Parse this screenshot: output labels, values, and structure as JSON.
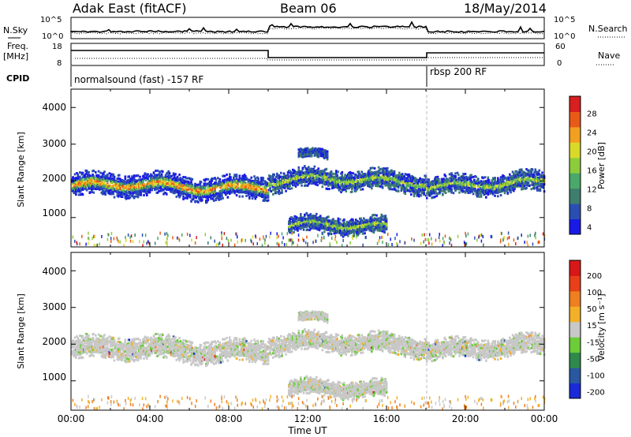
{
  "header": {
    "site": "Adak East (fitACF)",
    "beam": "Beam 06",
    "date": "18/May/2014"
  },
  "params": {
    "nsky_label": "N.Sky",
    "nsearch_label": "N.Search",
    "freq_label": "Freq.",
    "freq_unit": "[MHz]",
    "nave_label": "Nave",
    "cpid_label": "CPID",
    "noise_ticks": [
      "10^5",
      "10^0"
    ],
    "freq_ticks": [
      "18",
      "8"
    ],
    "nave_ticks": [
      "60",
      "0"
    ],
    "cpid_segments": [
      {
        "start": "00:00",
        "end": "18:00",
        "text": "normalsound (fast) -157 RF"
      },
      {
        "start": "18:00",
        "end": "24:00",
        "text": "rbsp 200 RF"
      }
    ]
  },
  "chart_data": [
    {
      "type": "heatmap",
      "title": "",
      "ylabel": "Slant Range [km]",
      "xlabel": "",
      "ylim": [
        200,
        4500
      ],
      "yticks": [
        "1000",
        "2000",
        "3000",
        "4000"
      ],
      "colorbar": {
        "label": "Power [dB]",
        "ticks": [
          "28",
          "24",
          "20",
          "16",
          "12",
          "8",
          "4"
        ],
        "colors": [
          "#1a1ae6",
          "#2a4fb0",
          "#3d7e6e",
          "#4aa86a",
          "#8ccc3a",
          "#d9d92a",
          "#f2a020",
          "#e85a18",
          "#d81e1e"
        ]
      },
      "echo_bands": [
        {
          "start_h": 0,
          "end_h": 10,
          "center_km": 1850,
          "width_km": 400,
          "level": "strong"
        },
        {
          "start_h": 10,
          "end_h": 18,
          "center_km": 2000,
          "width_km": 350,
          "level": "moderate"
        },
        {
          "start_h": 18,
          "end_h": 24,
          "center_km": 1900,
          "width_km": 350,
          "level": "moderate"
        },
        {
          "start_h": 11,
          "end_h": 16,
          "center_km": 750,
          "width_km": 300,
          "level": "moderate"
        },
        {
          "start_h": 11.5,
          "end_h": 13,
          "center_km": 2650,
          "width_km": 150,
          "level": "weak"
        }
      ]
    },
    {
      "type": "heatmap",
      "title": "",
      "ylabel": "Slant Range [km]",
      "xlabel": "Time UT",
      "ylim": [
        200,
        4500
      ],
      "yticks": [
        "1000",
        "2000",
        "3000",
        "4000"
      ],
      "xticks": [
        "00:00",
        "04:00",
        "08:00",
        "12:00",
        "16:00",
        "20:00",
        "00:00"
      ],
      "colorbar": {
        "label": "Velocity [m s⁻¹]",
        "ticks": [
          "200",
          "100",
          "50",
          "15",
          "-15",
          "-50",
          "-100",
          "-200"
        ],
        "colors": [
          "#1a2ad8",
          "#2a58a0",
          "#2e8a4a",
          "#6ccc3a",
          "#c8c8c8",
          "#f2b028",
          "#ee8020",
          "#e84018",
          "#d81818"
        ]
      }
    }
  ]
}
